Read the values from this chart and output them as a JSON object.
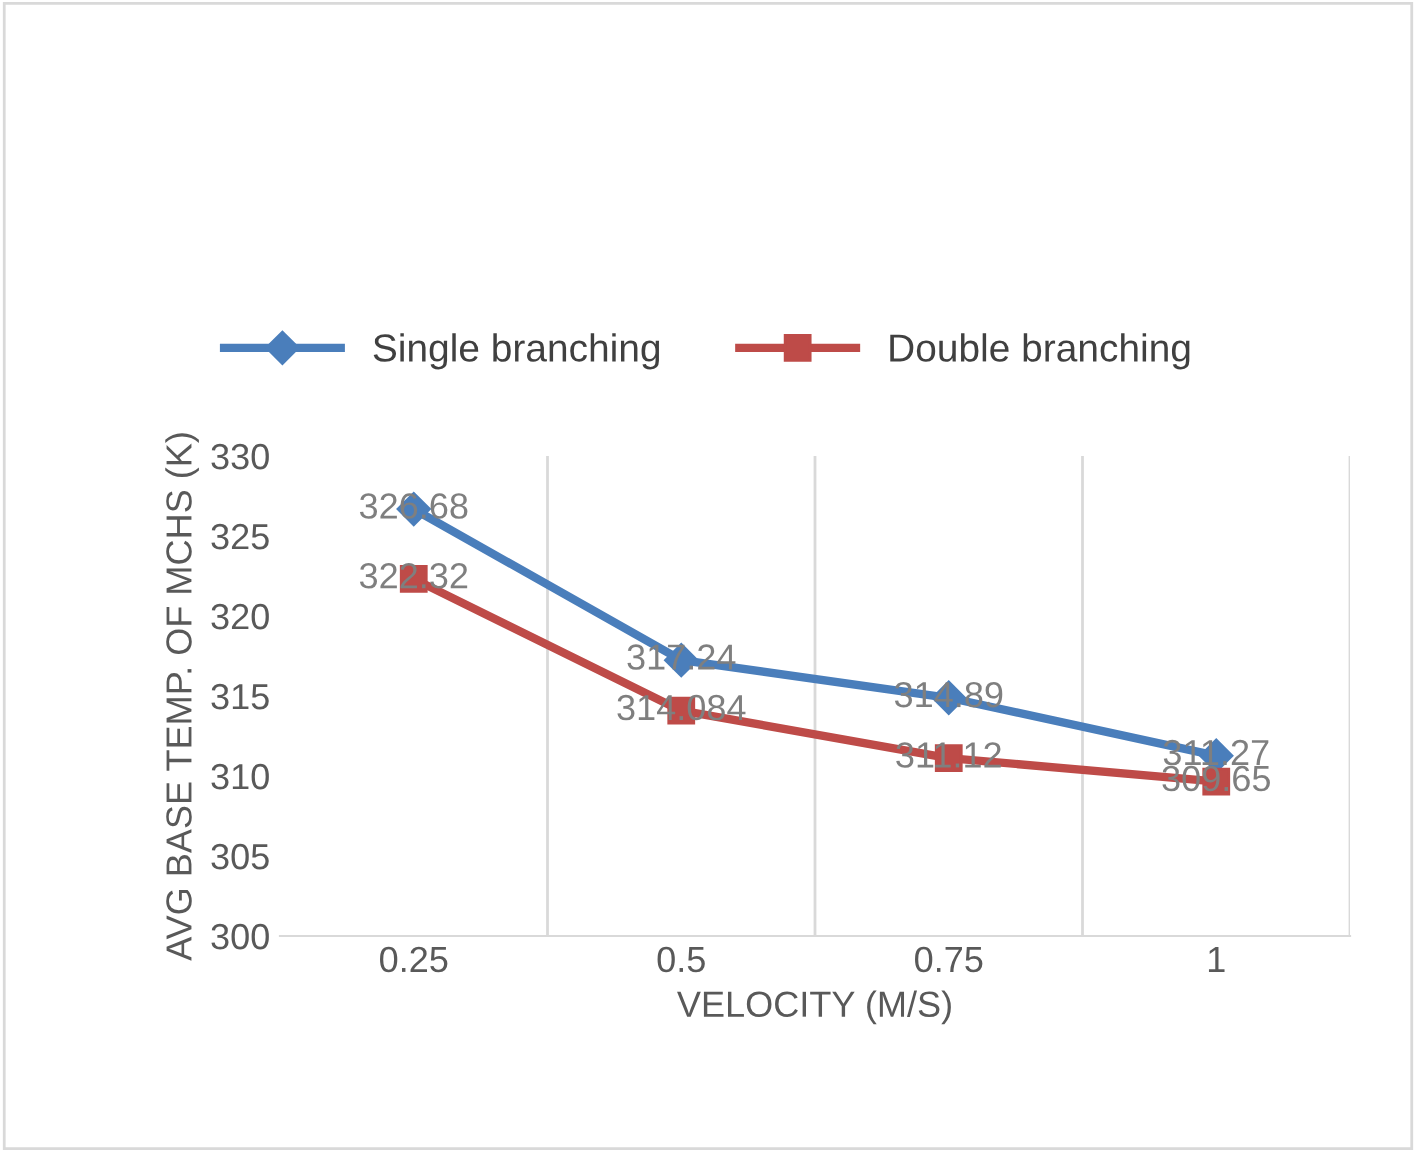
{
  "chart_data": {
    "type": "line",
    "xlabel": "VELOCITY (M/S)",
    "ylabel": "AVG BASE TEMP. OF MCHS (K)",
    "categories": [
      "0.25",
      "0.5",
      "0.75",
      "1"
    ],
    "series": [
      {
        "name": "Single branching",
        "color": "#4a7ebb",
        "marker": "diamond",
        "values": [
          326.68,
          317.24,
          314.89,
          311.27
        ]
      },
      {
        "name": "Double branching",
        "color": "#be4b48",
        "marker": "square",
        "values": [
          322.32,
          314.084,
          311.12,
          309.65
        ]
      }
    ],
    "ylim": [
      300,
      330
    ],
    "yticks": [
      300,
      305,
      310,
      315,
      320,
      325,
      330
    ],
    "grid": "x",
    "legend": "top",
    "data_labels": true,
    "line_style": "solid"
  }
}
